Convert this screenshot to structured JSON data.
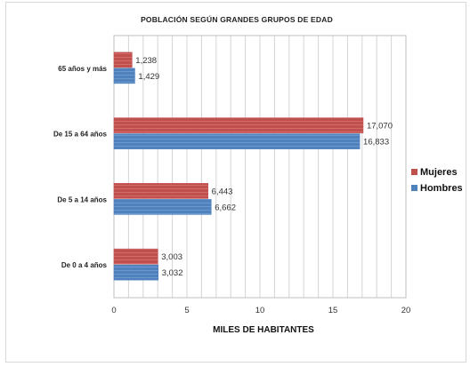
{
  "chart_data": {
    "type": "bar",
    "orientation": "horizontal",
    "title": "POBLACIÓN SEGÚN GRANDES GRUPOS DE EDAD",
    "xlabel": "MILES DE HABITANTES",
    "ylabel": "",
    "categories": [
      "65 años y más",
      "De 15 a 64 años",
      "De 5 a 14 años",
      "De 0 a 4 años"
    ],
    "series": [
      {
        "name": "Mujeres",
        "color": "#c0504d",
        "values": [
          1.238,
          17.07,
          6.443,
          3.003
        ],
        "labels": [
          "1,238",
          "17,070",
          "6,443",
          "3,003"
        ]
      },
      {
        "name": "Hombres",
        "color": "#4f81bd",
        "values": [
          1.429,
          16.833,
          6.662,
          3.032
        ],
        "labels": [
          "1,429",
          "16,833",
          "6,662",
          "3,032"
        ]
      }
    ],
    "xlim": [
      0,
      20
    ],
    "xticks": [
      "0",
      "5",
      "10",
      "15",
      "20"
    ],
    "grid": "vertical",
    "legend": "right"
  }
}
